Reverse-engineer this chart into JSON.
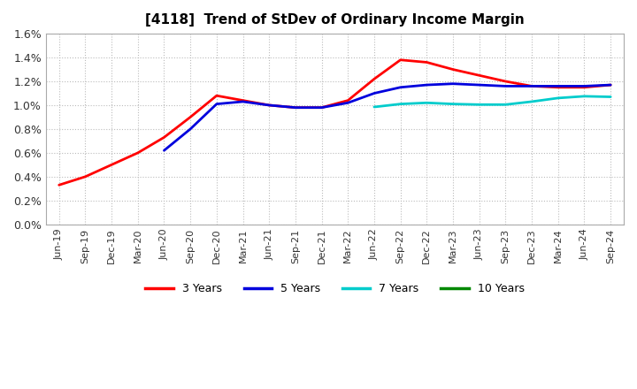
{
  "title": "[4118]  Trend of StDev of Ordinary Income Margin",
  "background_color": "#ffffff",
  "plot_background_color": "#ffffff",
  "grid_color": "#bbbbbb",
  "ylim": [
    0.0,
    0.016
  ],
  "yticks": [
    0.0,
    0.002,
    0.004,
    0.006,
    0.008,
    0.01,
    0.012,
    0.014,
    0.016
  ],
  "ytick_labels": [
    "0.0%",
    "0.2%",
    "0.4%",
    "0.6%",
    "0.8%",
    "1.0%",
    "1.2%",
    "1.4%",
    "1.6%"
  ],
  "x_labels": [
    "Jun-19",
    "Sep-19",
    "Dec-19",
    "Mar-20",
    "Jun-20",
    "Sep-20",
    "Dec-20",
    "Mar-21",
    "Jun-21",
    "Sep-21",
    "Dec-21",
    "Mar-22",
    "Jun-22",
    "Sep-22",
    "Dec-22",
    "Mar-23",
    "Jun-23",
    "Sep-23",
    "Dec-23",
    "Mar-24",
    "Jun-24",
    "Sep-24"
  ],
  "series": {
    "3 Years": {
      "color": "#ff0000",
      "linewidth": 2.0,
      "values": [
        0.0033,
        0.004,
        0.005,
        0.006,
        0.0073,
        0.009,
        0.0108,
        0.0104,
        0.01,
        0.0098,
        0.0098,
        0.0104,
        0.0122,
        0.0138,
        0.0136,
        0.013,
        0.0125,
        0.012,
        0.0116,
        0.0115,
        0.0115,
        0.0117
      ]
    },
    "5 Years": {
      "color": "#0000dd",
      "linewidth": 2.0,
      "values": [
        null,
        null,
        null,
        null,
        0.0062,
        0.008,
        0.0101,
        0.0103,
        0.01,
        0.0098,
        0.0098,
        0.0102,
        0.011,
        0.0115,
        0.0117,
        0.0118,
        0.0117,
        0.0116,
        0.0116,
        0.0116,
        0.0116,
        0.0117
      ]
    },
    "7 Years": {
      "color": "#00cccc",
      "linewidth": 2.0,
      "values": [
        null,
        null,
        null,
        null,
        null,
        null,
        null,
        null,
        null,
        null,
        null,
        null,
        0.00985,
        0.0101,
        0.0102,
        0.0101,
        0.01005,
        0.01005,
        0.0103,
        0.0106,
        0.01075,
        0.0107
      ]
    },
    "10 Years": {
      "color": "#008800",
      "linewidth": 2.0,
      "values": [
        null,
        null,
        null,
        null,
        null,
        null,
        null,
        null,
        null,
        null,
        null,
        null,
        null,
        null,
        null,
        null,
        null,
        null,
        null,
        null,
        null,
        null
      ]
    }
  },
  "legend_labels": [
    "3 Years",
    "5 Years",
    "7 Years",
    "10 Years"
  ],
  "legend_colors": [
    "#ff0000",
    "#0000dd",
    "#00cccc",
    "#008800"
  ]
}
